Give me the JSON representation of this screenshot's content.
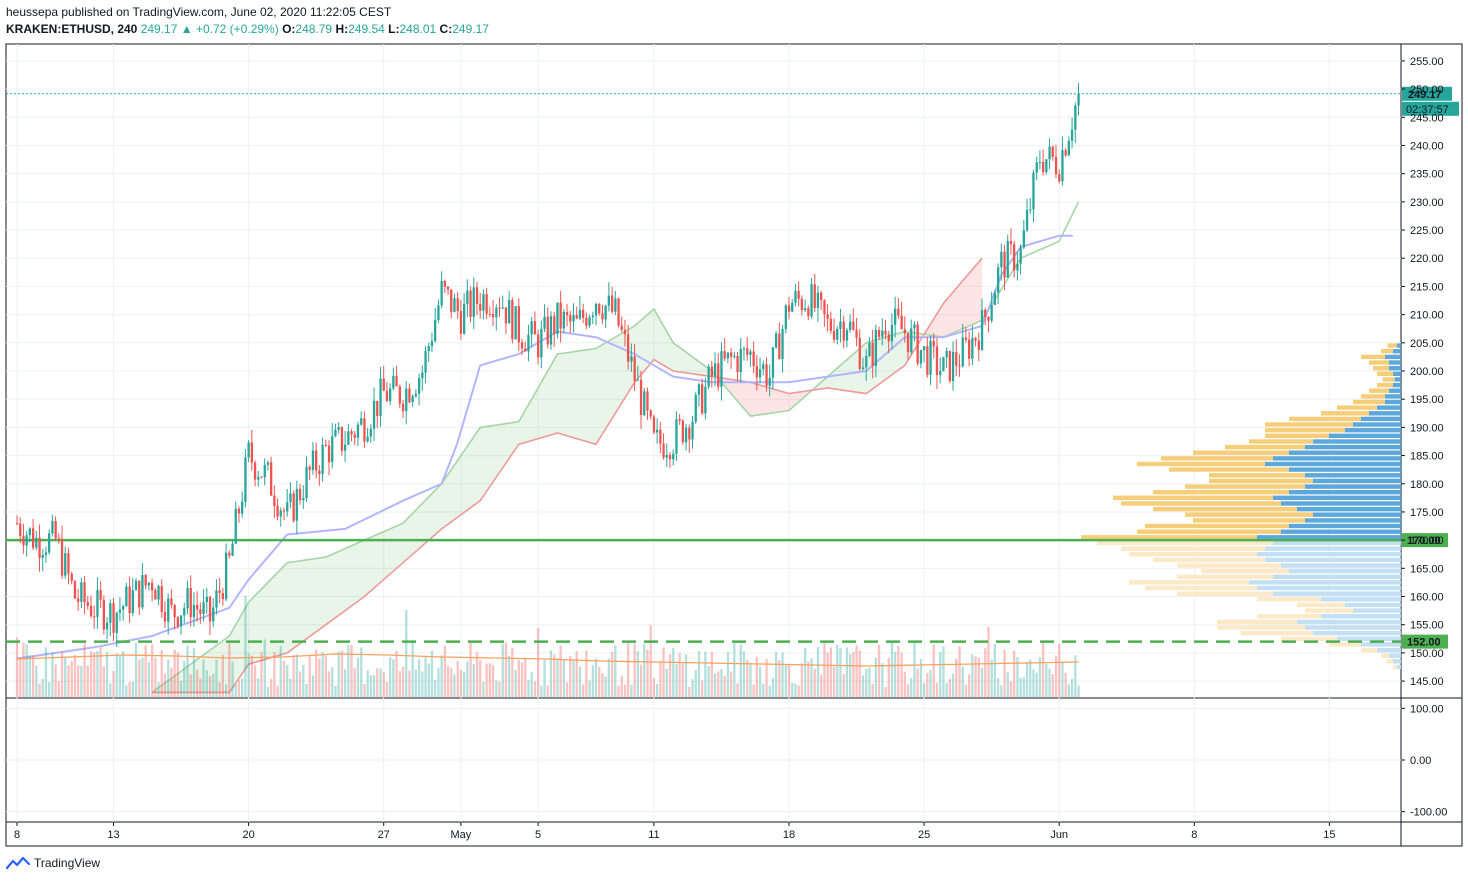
{
  "header": {
    "line1": "heussepa published on TradingView.com, June 02, 2020 11:22:05 CEST",
    "symbol": "KRAKEN:ETHUSD, 240",
    "last": "249.17",
    "change_arrow": "▲",
    "change": "+0.72 (+0.29%)",
    "o_label": "O:",
    "o_value": "248.79",
    "h_label": "H:",
    "h_value": "249.54",
    "l_label": "L:",
    "l_value": "248.01",
    "c_label": "C:",
    "c_value": "249.17"
  },
  "footer": {
    "brand": "TradingView"
  },
  "colors": {
    "up": "#26a69a",
    "down": "#ef5350",
    "base_line": "#b2b5ff",
    "lead_a": "#a5d6a7",
    "lead_b": "#ef9a9a",
    "support": "#4caf50",
    "ma": "#f7a15d",
    "vp_up": "#4a9fd8",
    "vp_down": "#f5c96b"
  },
  "chart_data": {
    "type": "candlestick",
    "symbol": "KRAKEN:ETHUSD",
    "interval": "240",
    "price_axis": {
      "ylim": [
        142,
        258
      ],
      "ticks": [
        "255.00",
        "250.00",
        "245.00",
        "240.00",
        "235.00",
        "230.00",
        "225.00",
        "220.00",
        "215.00",
        "210.00",
        "205.00",
        "200.00",
        "195.00",
        "190.00",
        "185.00",
        "180.00",
        "175.00",
        "170.00",
        "165.00",
        "160.00",
        "155.00",
        "150.00",
        "145.00"
      ]
    },
    "indicator_axis": {
      "ylim": [
        -120,
        120
      ],
      "ticks": [
        "100.00",
        "0.00",
        "-100.00"
      ]
    },
    "time_axis": {
      "labels": [
        "8",
        "13",
        "20",
        "27",
        "May",
        "5",
        "11",
        "18",
        "25",
        "Jun",
        "8",
        "15"
      ],
      "label_days": [
        0,
        5,
        12,
        19,
        23,
        27,
        33,
        40,
        47,
        54,
        61,
        68
      ]
    },
    "last_price": {
      "value": 249.17,
      "label": "249.17",
      "countdown": "02:37:57"
    },
    "horizontal_levels": [
      {
        "value": 170,
        "label": "170.00",
        "style": "solid"
      },
      {
        "value": 152,
        "label": "152.00",
        "style": "dashed"
      }
    ],
    "price_path": [
      [
        0,
        173
      ],
      [
        1,
        170
      ],
      [
        2,
        170
      ],
      [
        3,
        160
      ],
      [
        4,
        158
      ],
      [
        5,
        157
      ],
      [
        6,
        160
      ],
      [
        7,
        163
      ],
      [
        8,
        157
      ],
      [
        9,
        159
      ],
      [
        10,
        156
      ],
      [
        11,
        166
      ],
      [
        12,
        185
      ],
      [
        13,
        181
      ],
      [
        14,
        174
      ],
      [
        15,
        181
      ],
      [
        16,
        186
      ],
      [
        17,
        188
      ],
      [
        18,
        191
      ],
      [
        19,
        196
      ],
      [
        20,
        196
      ],
      [
        21,
        200
      ],
      [
        22,
        214
      ],
      [
        23,
        210
      ],
      [
        24,
        213
      ],
      [
        25,
        213
      ],
      [
        26,
        207
      ],
      [
        27,
        205
      ],
      [
        28,
        209
      ],
      [
        29,
        208
      ],
      [
        30,
        213
      ],
      [
        31,
        210
      ],
      [
        32,
        199
      ],
      [
        33,
        187
      ],
      [
        34,
        188
      ],
      [
        35,
        192
      ],
      [
        36,
        199
      ],
      [
        37,
        202
      ],
      [
        38,
        203
      ],
      [
        39,
        199
      ],
      [
        40,
        212
      ],
      [
        41,
        213
      ],
      [
        42,
        208
      ],
      [
        43,
        209
      ],
      [
        44,
        201
      ],
      [
        45,
        209
      ],
      [
        46,
        207
      ],
      [
        47,
        203
      ],
      [
        48,
        200
      ],
      [
        49,
        203
      ],
      [
        50,
        208
      ],
      [
        51,
        219
      ],
      [
        52,
        221
      ],
      [
        53,
        238
      ],
      [
        54,
        237
      ],
      [
        55,
        249
      ]
    ],
    "ichimoku": {
      "base_line": [
        [
          0,
          149
        ],
        [
          4,
          151
        ],
        [
          7,
          153
        ],
        [
          11,
          158
        ],
        [
          12,
          163
        ],
        [
          14,
          171
        ],
        [
          17,
          172
        ],
        [
          20,
          177
        ],
        [
          22,
          180
        ],
        [
          22.8,
          187
        ],
        [
          24,
          201
        ],
        [
          26,
          203
        ],
        [
          28,
          207
        ],
        [
          30,
          206
        ],
        [
          32,
          203
        ],
        [
          34,
          199
        ],
        [
          36,
          198
        ],
        [
          38,
          198
        ],
        [
          40,
          198
        ],
        [
          42,
          199
        ],
        [
          44,
          200
        ],
        [
          46,
          206
        ],
        [
          48,
          206
        ],
        [
          50,
          208
        ],
        [
          51,
          217
        ],
        [
          52,
          222
        ],
        [
          54,
          224
        ],
        [
          54.7,
          224
        ]
      ],
      "lead_a": [
        [
          7,
          143
        ],
        [
          11,
          153
        ],
        [
          12,
          159
        ],
        [
          14,
          166
        ],
        [
          16,
          167
        ],
        [
          20,
          173
        ],
        [
          22,
          180
        ],
        [
          24,
          190
        ],
        [
          26,
          191
        ],
        [
          28,
          203
        ],
        [
          30,
          204
        ],
        [
          32,
          208
        ],
        [
          33,
          211
        ],
        [
          34,
          205
        ],
        [
          36,
          200
        ],
        [
          38,
          192
        ],
        [
          40,
          193
        ],
        [
          42,
          199
        ],
        [
          44,
          205
        ],
        [
          46,
          207
        ],
        [
          48,
          206
        ],
        [
          50,
          209
        ],
        [
          52,
          220
        ],
        [
          54,
          223
        ],
        [
          55,
          230
        ]
      ],
      "lead_b": [
        [
          7,
          143
        ],
        [
          11,
          143
        ],
        [
          12,
          148
        ],
        [
          14,
          150
        ],
        [
          16,
          155
        ],
        [
          18,
          160
        ],
        [
          20,
          166
        ],
        [
          22,
          172
        ],
        [
          24,
          177
        ],
        [
          26,
          187
        ],
        [
          28,
          189
        ],
        [
          30,
          187
        ],
        [
          32,
          198
        ],
        [
          33,
          202
        ],
        [
          34,
          200
        ],
        [
          36,
          199
        ],
        [
          38,
          198
        ],
        [
          40,
          196
        ],
        [
          42,
          197
        ],
        [
          44,
          196
        ],
        [
          46,
          201
        ],
        [
          48,
          212
        ],
        [
          49,
          216
        ],
        [
          50,
          220
        ]
      ]
    },
    "volume_profile": {
      "bins_low": 147,
      "bin_size": 1,
      "values": [
        [
          0.5,
          0.5
        ],
        [
          1,
          0.8
        ],
        [
          1.5,
          1
        ],
        [
          3,
          2
        ],
        [
          5,
          4
        ],
        [
          8,
          7
        ],
        [
          11,
          9
        ],
        [
          12,
          11
        ],
        [
          13,
          10
        ],
        [
          10,
          8
        ],
        [
          6,
          6
        ],
        [
          7,
          6
        ],
        [
          10,
          8
        ],
        [
          16,
          12
        ],
        [
          18,
          14
        ],
        [
          19,
          15
        ],
        [
          16,
          12
        ],
        [
          14,
          11
        ],
        [
          15,
          13
        ],
        [
          17,
          14
        ],
        [
          18,
          16
        ],
        [
          17,
          18
        ],
        [
          16,
          22
        ],
        [
          18,
          22
        ],
        [
          15,
          18
        ],
        [
          14,
          18
        ],
        [
          12,
          14
        ],
        [
          11,
          16
        ],
        [
          13,
          18
        ],
        [
          15,
          20
        ],
        [
          16,
          20
        ],
        [
          14,
          17
        ],
        [
          12,
          15
        ],
        [
          11,
          13
        ],
        [
          12,
          12
        ],
        [
          14,
          15
        ],
        [
          17,
          16
        ],
        [
          16,
          14
        ],
        [
          14,
          12
        ],
        [
          12,
          10
        ],
        [
          11,
          8
        ],
        [
          9,
          8
        ],
        [
          7,
          10
        ],
        [
          6,
          11
        ],
        [
          5,
          9
        ],
        [
          4,
          6
        ],
        [
          3,
          5
        ],
        [
          2,
          4
        ],
        [
          2,
          3
        ],
        [
          1.5,
          2.5
        ],
        [
          1,
          2
        ],
        [
          0.8,
          1.5
        ],
        [
          1,
          2
        ],
        [
          1.5,
          2
        ],
        [
          1.5,
          2.5
        ],
        [
          2,
          3
        ],
        [
          1,
          1.5
        ],
        [
          0.5,
          1.2
        ]
      ]
    },
    "volume": {
      "moving_average": [
        0.38,
        0.4,
        0.42,
        0.41,
        0.39,
        0.4,
        0.43,
        0.42,
        0.4,
        0.39,
        0.38,
        0.36,
        0.35,
        0.34,
        0.33,
        0.32,
        0.31,
        0.32,
        0.33,
        0.34,
        0.35
      ]
    }
  }
}
